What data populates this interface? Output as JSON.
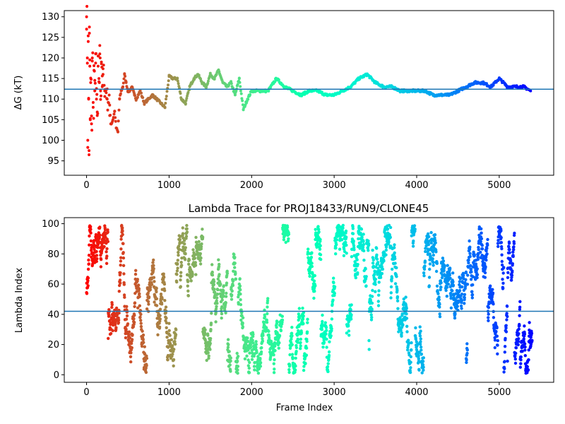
{
  "chart_data": [
    {
      "type": "scatter",
      "title": "",
      "xlabel": "",
      "ylabel": "ΔG (kT)",
      "xlim": [
        -270,
        5660
      ],
      "ylim": [
        91.5,
        131.5
      ],
      "xticks": [
        0,
        1000,
        2000,
        3000,
        4000,
        5000
      ],
      "yticks": [
        95,
        100,
        105,
        110,
        115,
        120,
        125,
        130
      ],
      "xtick_labels": [
        "0",
        "1000",
        "2000",
        "3000",
        "4000",
        "5000"
      ],
      "ytick_labels": [
        "95",
        "100",
        "105",
        "110",
        "115",
        "120",
        "125",
        "130"
      ],
      "colormap": "rainbow (red at frame 0 → violet at last frame)",
      "horizontal_line": {
        "y": 112.4,
        "color": "#1f77b4"
      },
      "series": [
        {
          "x": [
            0,
            10,
            15,
            20,
            25,
            30,
            35,
            40,
            45,
            50,
            60,
            70,
            80,
            90,
            100,
            110,
            120,
            130,
            140,
            150,
            160,
            170,
            180,
            190,
            200,
            220,
            250,
            280,
            300,
            320,
            340,
            360,
            380,
            400,
            420,
            440,
            460,
            480,
            500,
            520,
            550,
            580,
            600,
            650,
            700,
            750,
            800,
            850,
            900,
            950,
            1000,
            1050,
            1100,
            1150,
            1200,
            1250,
            1300,
            1350,
            1400,
            1450,
            1500,
            1550,
            1600,
            1650,
            1700,
            1750,
            1800,
            1850,
            1900,
            1950,
            2000,
            2100,
            2200,
            2300,
            2400,
            2500,
            2600,
            2700,
            2800,
            2900,
            3000,
            3100,
            3200,
            3300,
            3400,
            3500,
            3600,
            3700,
            3800,
            3900,
            4000,
            4100,
            4200,
            4300,
            4400,
            4500,
            4600,
            4700,
            4800,
            4900,
            5000,
            5100,
            5200,
            5300,
            5380
          ],
          "y": [
            130,
            120,
            100,
            124,
            110,
            97.5,
            126,
            118,
            105,
            114,
            104,
            120,
            108,
            117,
            112,
            121,
            110,
            106,
            118,
            115,
            121,
            112,
            119,
            113,
            116,
            112,
            110,
            106,
            104,
            105,
            107,
            103,
            102,
            110,
            112,
            113,
            116,
            114,
            112,
            112,
            113,
            111,
            110,
            112,
            109,
            110,
            111,
            110,
            109,
            108,
            115.5,
            115,
            115,
            110,
            109,
            113,
            115,
            116,
            114,
            113,
            116,
            115,
            117,
            114,
            113,
            114,
            111,
            115,
            107.5,
            110,
            112,
            112,
            112,
            115,
            113,
            112,
            111,
            112,
            112,
            111,
            111,
            112,
            113,
            115,
            116,
            114,
            113,
            113,
            112,
            112,
            112,
            112,
            111,
            111,
            111,
            112,
            113,
            114,
            114,
            113,
            115,
            113,
            113,
            113,
            112
          ]
        }
      ]
    },
    {
      "type": "scatter",
      "title": "Lambda Trace for PROJ18433/RUN9/CLONE45",
      "xlabel": "Frame Index",
      "ylabel": "Lambda Index",
      "xlim": [
        -270,
        5660
      ],
      "ylim": [
        -5,
        104
      ],
      "xticks": [
        0,
        1000,
        2000,
        3000,
        4000,
        5000
      ],
      "yticks": [
        0,
        20,
        40,
        60,
        80,
        100
      ],
      "xtick_labels": [
        "0",
        "1000",
        "2000",
        "3000",
        "4000",
        "5000"
      ],
      "ytick_labels": [
        "0",
        "20",
        "40",
        "60",
        "80",
        "100"
      ],
      "colormap": "rainbow (red at frame 0 → violet at last frame)",
      "horizontal_line": {
        "y": 42,
        "color": "#1f77b4"
      },
      "n_frames": 5400,
      "value_range": [
        1,
        99
      ]
    }
  ]
}
